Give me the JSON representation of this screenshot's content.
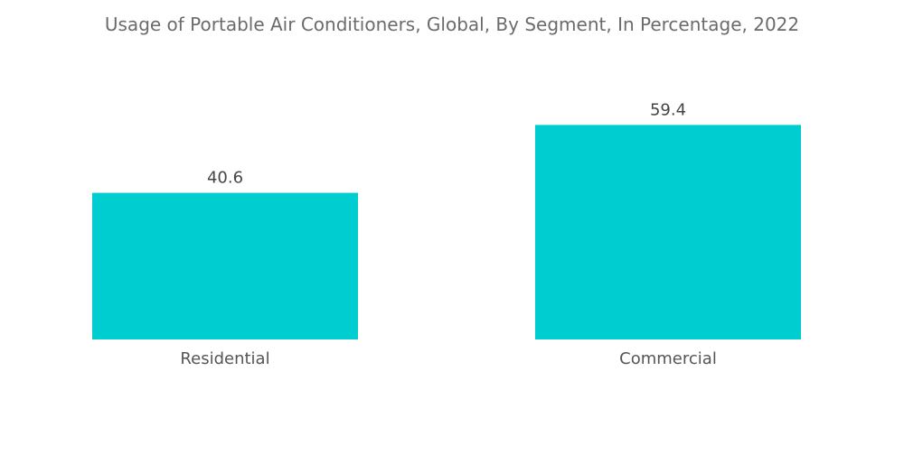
{
  "chart_data": {
    "type": "bar",
    "title": "Usage of Portable Air Conditioners, Global, By Segment, In Percentage, 2022",
    "categories": [
      "Residential",
      "Commercial"
    ],
    "values": [
      40.6,
      59.4
    ],
    "value_labels": [
      "40.6",
      "59.4"
    ],
    "xlabel": "",
    "ylabel": "",
    "grid": false,
    "bar_color": "#00CDCF"
  }
}
